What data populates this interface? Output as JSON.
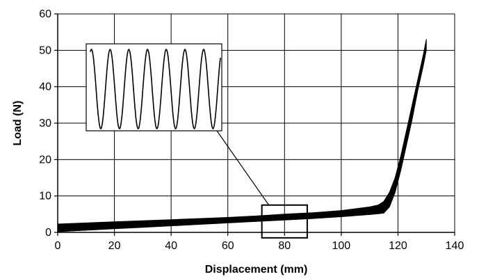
{
  "chart_data": {
    "type": "line",
    "title": "",
    "xlabel": "Displacement (mm)",
    "ylabel": "Load (N)",
    "xlim": [
      0,
      140
    ],
    "ylim": [
      0,
      60
    ],
    "x_ticks": [
      "0",
      "20",
      "40",
      "60",
      "80",
      "100",
      "120",
      "140"
    ],
    "y_ticks": [
      "0",
      "10",
      "20",
      "30",
      "40",
      "50",
      "60"
    ],
    "grid": true,
    "legend": "none",
    "series_color": "#000000",
    "envelope": {
      "x": [
        0,
        10,
        20,
        30,
        40,
        50,
        60,
        70,
        80,
        90,
        100,
        105,
        110,
        113,
        115,
        117,
        119,
        121,
        123,
        125,
        127,
        129,
        130
      ],
      "lower": [
        0.2,
        0.6,
        1.0,
        1.4,
        1.8,
        2.2,
        2.6,
        3.0,
        3.4,
        3.8,
        4.3,
        4.6,
        4.9,
        5.1,
        5.3,
        7.0,
        11.0,
        17.0,
        24.0,
        31.0,
        39.0,
        46.0,
        50.0
      ],
      "upper": [
        2.3,
        2.6,
        2.9,
        3.2,
        3.5,
        3.8,
        4.1,
        4.5,
        5.0,
        5.4,
        6.0,
        6.5,
        7.0,
        7.5,
        8.5,
        11.0,
        15.0,
        21.0,
        28.0,
        35.0,
        42.0,
        49.0,
        53.0
      ]
    },
    "zoom_box": {
      "x": [
        72,
        88
      ],
      "y": [
        -1.5,
        7.5
      ]
    },
    "inset": {
      "cycles": 7,
      "peak": 50,
      "trough": 28.5
    }
  }
}
